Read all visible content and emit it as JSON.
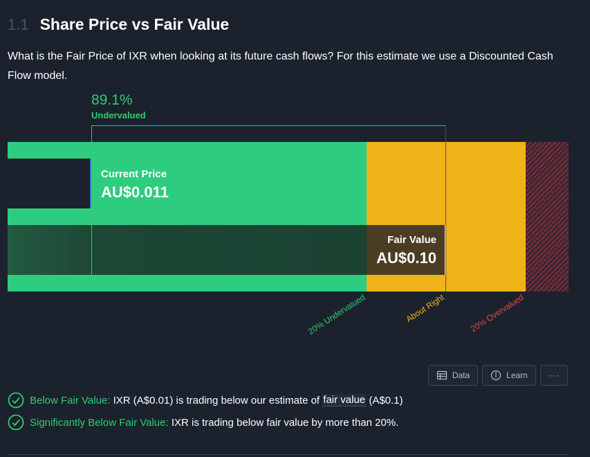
{
  "section": {
    "number": "1.1",
    "title": "Share Price vs Fair Value"
  },
  "description": "What is the Fair Price of IXR when looking at its future cash flows? For this estimate we use a Discounted Cash Flow model.",
  "valuation": {
    "percent": "89.1%",
    "status": "Undervalued",
    "current_price_label": "Current Price",
    "current_price_value": "AU$0.011",
    "fair_value_label": "Fair Value",
    "fair_value_value": "AU$0.10"
  },
  "axis_labels": {
    "under": "20% Undervalued",
    "right": "About Right",
    "over": "20% Overvalued"
  },
  "toolbar": {
    "data_label": "Data",
    "learn_label": "Learn",
    "more_label": "···"
  },
  "checks": [
    {
      "title": "Below Fair Value:",
      "pre": "IXR (A$0.01) is trading below our estimate of",
      "link": "fair value",
      "post": "(A$0.1)"
    },
    {
      "title": "Significantly Below Fair Value:",
      "text": "IXR is trading below fair value by more than 20%."
    }
  ],
  "colors": {
    "green": "#2ecc71",
    "amber": "#efb319",
    "red": "#e04848",
    "background": "#1b222d"
  },
  "icons": {
    "data": "table-icon",
    "learn": "info-circle-icon",
    "check": "check-circle-icon"
  }
}
